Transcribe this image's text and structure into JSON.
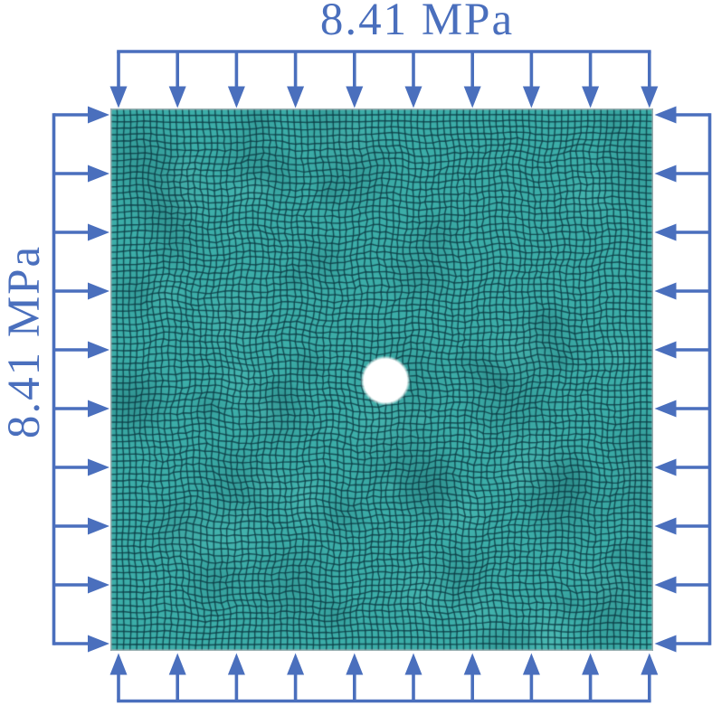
{
  "figure": {
    "top_label": "8.41 MPa",
    "left_label": "8.41 MPa",
    "pressure_value": "8.41 MPa",
    "colors": {
      "load_accent": "#4a6fbd",
      "mesh_fill": "#3cada8",
      "mesh_edge": "#0d3e46",
      "plate_outline": "#9fb0b2",
      "hole_fill": "#ffffff",
      "background": "#ffffff"
    },
    "loads": {
      "sides": [
        {
          "side": "top",
          "icon": "arrow-down-icon",
          "count": 10,
          "direction": "down"
        },
        {
          "side": "bottom",
          "icon": "arrow-up-icon",
          "count": 10,
          "direction": "up"
        },
        {
          "side": "left",
          "icon": "arrow-right-icon",
          "count": 10,
          "direction": "right"
        },
        {
          "side": "right",
          "icon": "arrow-left-icon",
          "count": 10,
          "direction": "left"
        }
      ]
    },
    "plate": {
      "description": "square finite-element quad mesh with central circular hole",
      "has_center_hole": true
    }
  }
}
